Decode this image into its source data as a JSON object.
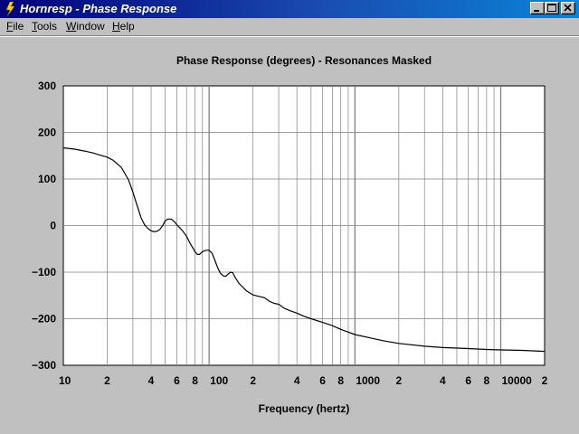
{
  "window": {
    "title": "Hornresp - Phase Response",
    "buttons": {
      "minimize": "_",
      "maximize": "□",
      "close": "×"
    }
  },
  "menu": [
    {
      "label": "File",
      "underline": "F",
      "rest": "ile"
    },
    {
      "label": "Tools",
      "underline": "T",
      "rest": "ools"
    },
    {
      "label": "Window",
      "underline": "W",
      "rest": "indow"
    },
    {
      "label": "Help",
      "underline": "H",
      "rest": "elp"
    }
  ],
  "colors": {
    "plot_bg": "#ffffff",
    "grid": "#808080",
    "curve": "#000000",
    "titlebar": "#00007b"
  },
  "chart_data": {
    "type": "line",
    "title": "Phase Response (degrees) - Resonances Masked",
    "xlabel": "Frequency (hertz)",
    "ylabel": "",
    "x_scale": "log",
    "xlim": [
      10,
      20000
    ],
    "ylim": [
      -300,
      300
    ],
    "grid": true,
    "y_ticks": [
      300,
      200,
      100,
      0,
      -100,
      -200,
      -300
    ],
    "x_tick_labels": [
      {
        "x": 10,
        "label": "10"
      },
      {
        "x": 20,
        "label": "2"
      },
      {
        "x": 40,
        "label": "4"
      },
      {
        "x": 60,
        "label": "6"
      },
      {
        "x": 80,
        "label": "8"
      },
      {
        "x": 100,
        "label": "100"
      },
      {
        "x": 200,
        "label": "2"
      },
      {
        "x": 400,
        "label": "4"
      },
      {
        "x": 600,
        "label": "6"
      },
      {
        "x": 800,
        "label": "8"
      },
      {
        "x": 1000,
        "label": "1000"
      },
      {
        "x": 2000,
        "label": "2"
      },
      {
        "x": 4000,
        "label": "4"
      },
      {
        "x": 6000,
        "label": "6"
      },
      {
        "x": 8000,
        "label": "8"
      },
      {
        "x": 10000,
        "label": "10000"
      },
      {
        "x": 20000,
        "label": "2"
      }
    ],
    "series": [
      {
        "x": [
          10,
          12,
          14,
          16,
          18,
          20,
          22,
          25,
          28,
          30,
          32,
          34,
          36,
          38,
          40,
          42,
          44,
          46,
          48,
          50,
          52,
          55,
          58,
          60,
          63,
          66,
          70,
          74,
          78,
          80,
          83,
          86,
          90,
          95,
          100,
          105,
          110,
          115,
          120,
          125,
          130,
          135,
          140,
          145,
          150,
          160,
          170,
          180,
          200,
          220,
          240,
          260,
          280,
          300,
          330,
          360,
          400,
          450,
          500,
          600,
          700,
          800,
          1000,
          1300,
          1600,
          2000,
          3000,
          4000,
          6000,
          8000,
          10000,
          14000,
          20000
        ],
        "values": [
          167,
          164,
          160,
          156,
          151,
          147,
          140,
          125,
          98,
          72,
          44,
          18,
          2,
          -6,
          -11,
          -13,
          -12,
          -8,
          0,
          10,
          14,
          14,
          8,
          2,
          -5,
          -12,
          -23,
          -38,
          -50,
          -56,
          -62,
          -62,
          -56,
          -53,
          -53,
          -60,
          -76,
          -92,
          -103,
          -108,
          -109,
          -104,
          -100,
          -101,
          -110,
          -124,
          -132,
          -140,
          -149,
          -152,
          -155,
          -163,
          -167,
          -169,
          -178,
          -183,
          -188,
          -195,
          -200,
          -208,
          -215,
          -223,
          -234,
          -242,
          -248,
          -253,
          -259,
          -262,
          -264,
          -266,
          -267,
          -268,
          -270
        ]
      }
    ]
  }
}
